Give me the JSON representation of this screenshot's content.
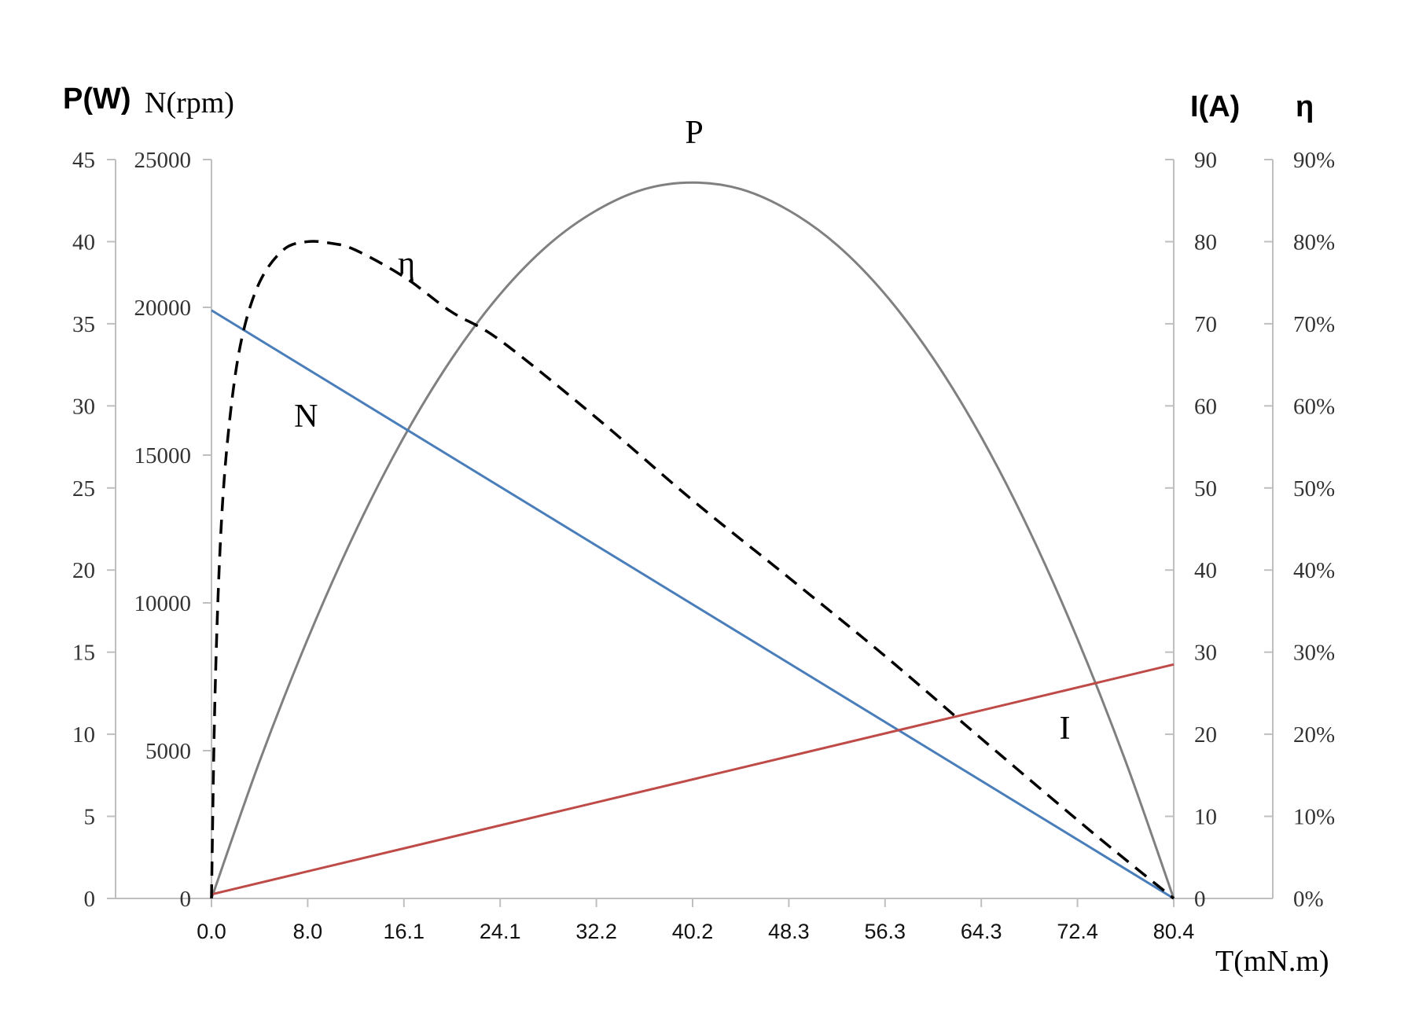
{
  "chart_data": {
    "type": "line",
    "title": "",
    "xlabel": "T(mN.m)",
    "xlim": [
      0,
      80.4
    ],
    "x_tick_labels": [
      "0.0",
      "8.0",
      "16.1",
      "24.1",
      "32.2",
      "40.2",
      "48.3",
      "56.3",
      "64.3",
      "72.4",
      "80.4"
    ],
    "axes": {
      "P": {
        "label": "P(W)",
        "side": "left-outer",
        "range": [
          0,
          45
        ],
        "ticks": [
          "0",
          "5",
          "10",
          "15",
          "20",
          "25",
          "30",
          "35",
          "40",
          "45"
        ]
      },
      "N": {
        "label": "N(rpm)",
        "side": "left-inner",
        "range": [
          0,
          25000
        ],
        "ticks": [
          "0",
          "5000",
          "10000",
          "15000",
          "20000",
          "25000"
        ]
      },
      "I": {
        "label": "I(A)",
        "side": "right-inner",
        "range": [
          0,
          90
        ],
        "ticks": [
          "0",
          "10",
          "20",
          "30",
          "40",
          "50",
          "60",
          "70",
          "80",
          "90"
        ]
      },
      "eta": {
        "label": "η",
        "side": "right-outer",
        "range": [
          0,
          0.9
        ],
        "ticks": [
          "0%",
          "10%",
          "20%",
          "30%",
          "40%",
          "50%",
          "60%",
          "70%",
          "80%",
          "90%"
        ]
      }
    },
    "grid": false,
    "series": [
      {
        "name": "P",
        "axis": "P",
        "color": "#808080",
        "style": "solid",
        "x": [
          0,
          4.02,
          8.04,
          12.06,
          16.08,
          20.1,
          24.12,
          28.14,
          32.16,
          36.18,
          40.2,
          44.22,
          48.24,
          52.26,
          56.28,
          60.3,
          64.32,
          68.34,
          72.36,
          76.38,
          80.4
        ],
        "values": [
          0,
          8.35,
          15.8,
          22.4,
          28.1,
          32.9,
          36.8,
          39.8,
          41.9,
          43.2,
          43.6,
          43.2,
          41.9,
          39.8,
          36.8,
          32.9,
          28.1,
          22.4,
          15.8,
          8.35,
          0
        ]
      },
      {
        "name": "N",
        "axis": "N",
        "color": "#4a7ebb",
        "style": "solid",
        "x": [
          0,
          80.4
        ],
        "values": [
          19900,
          0
        ]
      },
      {
        "name": "I",
        "axis": "I",
        "color": "#be4b48",
        "style": "solid",
        "x": [
          0,
          80.4
        ],
        "values": [
          0.5,
          28.5
        ]
      },
      {
        "name": "η",
        "axis": "eta",
        "color": "#000000",
        "style": "dashed",
        "x": [
          0,
          0.3,
          0.8,
          1.5,
          2.5,
          4.0,
          6.0,
          8.0,
          10.0,
          12.0,
          16.1,
          20.0,
          24.1,
          32.2,
          40.2,
          48.3,
          56.3,
          64.3,
          72.4,
          76.4,
          80.4
        ],
        "values": [
          0,
          0.25,
          0.45,
          0.58,
          0.68,
          0.75,
          0.79,
          0.8,
          0.798,
          0.79,
          0.757,
          0.715,
          0.68,
          0.585,
          0.485,
          0.39,
          0.295,
          0.195,
          0.095,
          0.047,
          0
        ]
      }
    ],
    "curve_labels": [
      {
        "text": "P",
        "series": "P"
      },
      {
        "text": "η",
        "series": "η"
      },
      {
        "text": "N",
        "series": "N"
      },
      {
        "text": "I",
        "series": "I"
      }
    ]
  }
}
